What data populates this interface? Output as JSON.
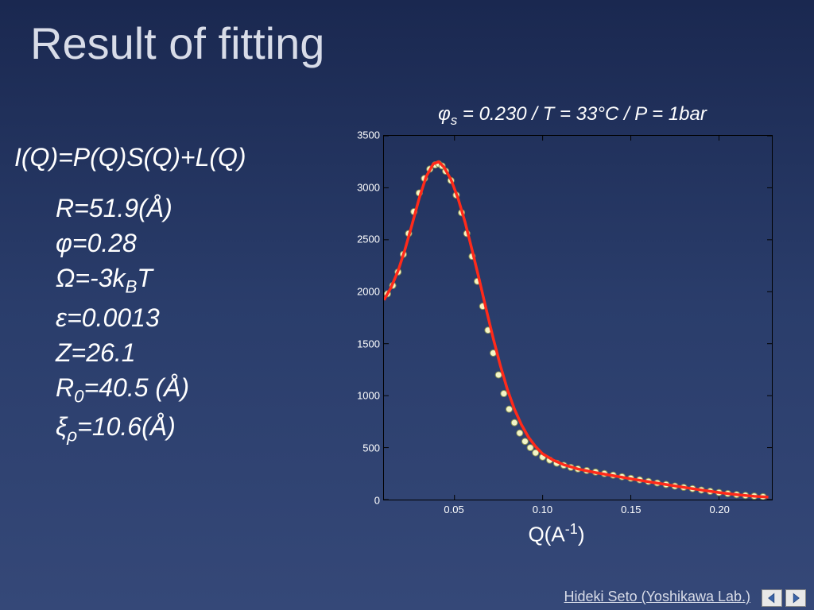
{
  "title": "Result of fitting",
  "equation_html": "<i>I</i>(<i>Q</i>)=<i>P</i>(<i>Q</i>)<i>S</i>(<i>Q</i>)+<i>L</i>(<i>Q</i>)",
  "params": [
    "<i>R</i>=51.9(Å)",
    "φ=0.28",
    "Ω=-3<i>k</i><sub>B</sub><i>T</i>",
    "ε=0.0013",
    "<i>Z</i>=26.1",
    "<i>R</i><sub>0</sub>=40.5 (Å)",
    "ξ<sub>ρ</sub>=10.6(Å)"
  ],
  "chart": {
    "type": "scatter+line",
    "title_html": "φ<sub>s</sub> = 0.230 / <i>T</i> = 33°C / <i>P</i> = 1bar",
    "xlabel_html": "Q(A<sup>-1</sup>)",
    "xlim": [
      0.01,
      0.23
    ],
    "ylim": [
      0,
      3500
    ],
    "ytick_step": 500,
    "xticks": [
      0.05,
      0.1,
      0.15,
      0.2
    ],
    "xtick_labels": [
      "0.05",
      "0.10",
      "0.15",
      "0.20"
    ],
    "ytick_labels": [
      "0",
      "500",
      "1000",
      "1500",
      "2000",
      "2500",
      "3000",
      "3500"
    ],
    "background_color": "transparent",
    "border_color": "#000000",
    "tick_font_size": 13,
    "label_font_size": 26,
    "title_font_size": 24,
    "marker": {
      "shape": "circle",
      "radius": 4,
      "fill": "#f3f5c8",
      "stroke": "#8a9257",
      "stroke_width": 1
    },
    "line": {
      "color": "#ff2a1a",
      "width": 3.5
    },
    "scatter": [
      [
        0.012,
        1980
      ],
      [
        0.015,
        2060
      ],
      [
        0.018,
        2190
      ],
      [
        0.021,
        2360
      ],
      [
        0.024,
        2560
      ],
      [
        0.027,
        2770
      ],
      [
        0.03,
        2950
      ],
      [
        0.033,
        3090
      ],
      [
        0.036,
        3180
      ],
      [
        0.039,
        3220
      ],
      [
        0.041,
        3230
      ],
      [
        0.043,
        3210
      ],
      [
        0.045,
        3160
      ],
      [
        0.048,
        3070
      ],
      [
        0.051,
        2930
      ],
      [
        0.054,
        2760
      ],
      [
        0.057,
        2560
      ],
      [
        0.06,
        2340
      ],
      [
        0.063,
        2100
      ],
      [
        0.066,
        1860
      ],
      [
        0.069,
        1630
      ],
      [
        0.072,
        1410
      ],
      [
        0.075,
        1200
      ],
      [
        0.078,
        1020
      ],
      [
        0.081,
        870
      ],
      [
        0.084,
        740
      ],
      [
        0.087,
        640
      ],
      [
        0.09,
        560
      ],
      [
        0.093,
        500
      ],
      [
        0.096,
        450
      ],
      [
        0.1,
        410
      ],
      [
        0.104,
        380
      ],
      [
        0.108,
        350
      ],
      [
        0.112,
        330
      ],
      [
        0.116,
        310
      ],
      [
        0.12,
        295
      ],
      [
        0.125,
        280
      ],
      [
        0.13,
        265
      ],
      [
        0.135,
        250
      ],
      [
        0.14,
        235
      ],
      [
        0.145,
        220
      ],
      [
        0.15,
        205
      ],
      [
        0.155,
        190
      ],
      [
        0.16,
        175
      ],
      [
        0.165,
        160
      ],
      [
        0.17,
        145
      ],
      [
        0.175,
        130
      ],
      [
        0.18,
        118
      ],
      [
        0.185,
        105
      ],
      [
        0.19,
        92
      ],
      [
        0.195,
        80
      ],
      [
        0.2,
        68
      ],
      [
        0.205,
        58
      ],
      [
        0.21,
        48
      ],
      [
        0.215,
        40
      ],
      [
        0.22,
        34
      ],
      [
        0.225,
        28
      ]
    ],
    "fit_line": [
      [
        0.01,
        1920
      ],
      [
        0.014,
        2040
      ],
      [
        0.018,
        2200
      ],
      [
        0.022,
        2410
      ],
      [
        0.026,
        2650
      ],
      [
        0.03,
        2900
      ],
      [
        0.034,
        3110
      ],
      [
        0.038,
        3230
      ],
      [
        0.041,
        3250
      ],
      [
        0.044,
        3200
      ],
      [
        0.048,
        3080
      ],
      [
        0.052,
        2900
      ],
      [
        0.056,
        2670
      ],
      [
        0.06,
        2400
      ],
      [
        0.064,
        2120
      ],
      [
        0.068,
        1830
      ],
      [
        0.072,
        1550
      ],
      [
        0.076,
        1290
      ],
      [
        0.08,
        1060
      ],
      [
        0.084,
        870
      ],
      [
        0.088,
        720
      ],
      [
        0.092,
        600
      ],
      [
        0.096,
        510
      ],
      [
        0.1,
        440
      ],
      [
        0.106,
        380
      ],
      [
        0.112,
        335
      ],
      [
        0.12,
        295
      ],
      [
        0.13,
        260
      ],
      [
        0.14,
        230
      ],
      [
        0.15,
        200
      ],
      [
        0.16,
        172
      ],
      [
        0.17,
        145
      ],
      [
        0.18,
        118
      ],
      [
        0.19,
        92
      ],
      [
        0.2,
        68
      ],
      [
        0.21,
        48
      ],
      [
        0.22,
        32
      ],
      [
        0.228,
        24
      ]
    ]
  },
  "footer_credit": "Hideki Seto (Yoshikawa Lab.)",
  "nav": {
    "prev": "◁",
    "next": "▷"
  }
}
